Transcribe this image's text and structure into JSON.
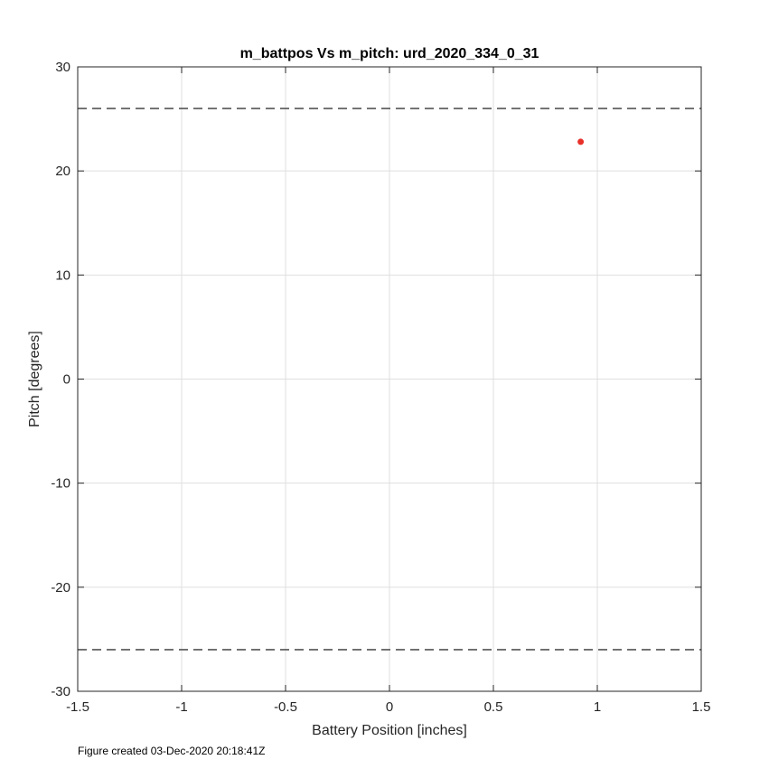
{
  "chart_data": {
    "type": "scatter",
    "title": "m_battpos Vs m_pitch: urd_2020_334_0_31",
    "xlabel": "Battery Position [inches]",
    "ylabel": "Pitch [degrees]",
    "xlim": [
      -1.5,
      1.5
    ],
    "ylim": [
      -30,
      30
    ],
    "x_ticks": [
      -1.5,
      -1,
      -0.5,
      0,
      0.5,
      1,
      1.5
    ],
    "x_tick_labels": [
      "-1.5",
      "-1",
      "-0.5",
      "0",
      "0.5",
      "1",
      "1.5"
    ],
    "y_ticks": [
      -30,
      -20,
      -10,
      0,
      10,
      20,
      30
    ],
    "y_tick_labels": [
      "-30",
      "-20",
      "-10",
      "0",
      "10",
      "20",
      "30"
    ],
    "grid": true,
    "points": [
      {
        "x": 0.92,
        "y": 22.8
      }
    ],
    "point_color": "#e8312a",
    "reference_lines": [
      {
        "y": 26,
        "style": "dashed",
        "color": "#555555"
      },
      {
        "y": -26,
        "style": "dashed",
        "color": "#555555"
      }
    ]
  },
  "footer_text": "Figure created 03-Dec-2020 20:18:41Z"
}
